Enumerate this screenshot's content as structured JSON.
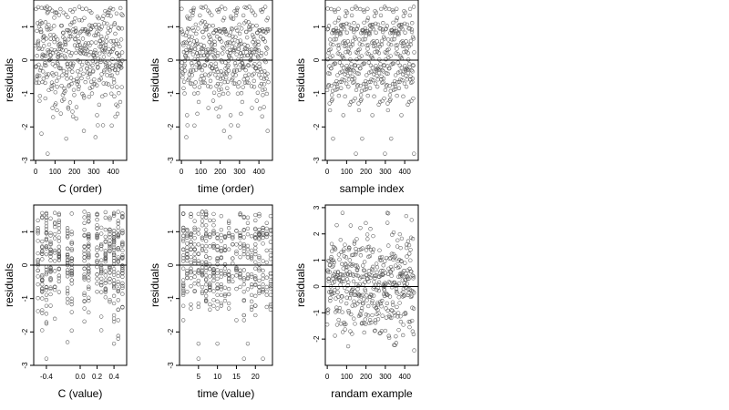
{
  "chart_data": [
    {
      "type": "scatter",
      "xlabel": "C (order)",
      "ylabel": "residuals",
      "xlim": [
        -10,
        470
      ],
      "ylim": [
        -3,
        1.8
      ],
      "xticks": [
        0,
        100,
        200,
        300,
        400
      ],
      "yticks": [
        -3,
        -2,
        -1,
        0,
        1
      ],
      "hline": 0,
      "pattern": "order",
      "n": 450
    },
    {
      "type": "scatter",
      "xlabel": "time (order)",
      "ylabel": "residuals",
      "xlim": [
        -10,
        470
      ],
      "ylim": [
        -3,
        1.8
      ],
      "xticks": [
        0,
        100,
        200,
        300,
        400
      ],
      "yticks": [
        -3,
        -2,
        -1,
        0,
        1
      ],
      "hline": 0,
      "pattern": "order",
      "n": 450
    },
    {
      "type": "scatter",
      "xlabel": "sample index",
      "ylabel": "residuals",
      "xlim": [
        -10,
        470
      ],
      "ylim": [
        -3,
        1.8
      ],
      "xticks": [
        0,
        100,
        200,
        300,
        400
      ],
      "yticks": [
        -3,
        -2,
        -1,
        0,
        1
      ],
      "hline": 0,
      "pattern": "order",
      "n": 450
    },
    {
      "type": "scatter",
      "xlabel": "C (value)",
      "ylabel": "residuals",
      "xlim": [
        -0.55,
        0.55
      ],
      "ylim": [
        -3,
        1.8
      ],
      "xticks": [
        -0.4,
        0.0,
        0.2,
        0.4
      ],
      "xtick_labels": [
        "-0.4",
        "0.0",
        "0.2",
        "0.4"
      ],
      "yticks": [
        -3,
        -2,
        -1,
        0,
        1
      ],
      "hline": 0,
      "pattern": "discrete",
      "discrete_x": [
        -0.5,
        -0.45,
        -0.4,
        -0.35,
        -0.3,
        -0.25,
        -0.15,
        -0.1,
        0.05,
        0.1,
        0.2,
        0.25,
        0.3,
        0.35,
        0.4,
        0.45,
        0.5
      ],
      "n": 450
    },
    {
      "type": "scatter",
      "xlabel": "time (value)",
      "ylabel": "residuals",
      "xlim": [
        0,
        24.5
      ],
      "ylim": [
        -3,
        1.8
      ],
      "xticks": [
        5,
        10,
        15,
        20
      ],
      "yticks": [
        -3,
        -2,
        -1,
        0,
        1
      ],
      "hline": 0,
      "pattern": "integer",
      "n": 450
    },
    {
      "type": "scatter",
      "xlabel": "randam example",
      "ylabel": "residuals",
      "xlim": [
        -10,
        470
      ],
      "ylim": [
        -3,
        3.1
      ],
      "xticks": [
        0,
        100,
        200,
        300,
        400
      ],
      "yticks": [
        -2,
        -1,
        0,
        1,
        2,
        3
      ],
      "hline": 0,
      "pattern": "random",
      "n": 450
    }
  ],
  "style": {
    "point_color": "#555555",
    "line_color": "#000000",
    "background": "#ffffff"
  }
}
